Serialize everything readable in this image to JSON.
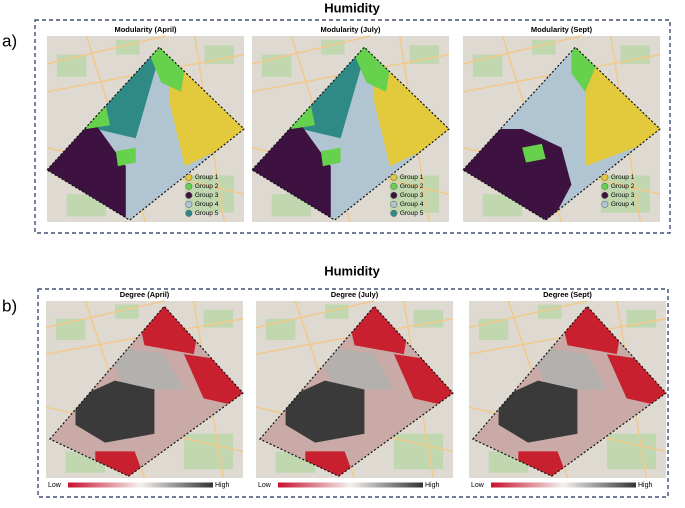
{
  "figure": {
    "panels": [
      {
        "label": "a)",
        "title": "Humidity",
        "maps": [
          {
            "title": "Modularity (April)",
            "legend": [
              {
                "label": "Group 1",
                "color": "#e3c93c"
              },
              {
                "label": "Group 2",
                "color": "#66d14c"
              },
              {
                "label": "Group 3",
                "color": "#3e1240"
              },
              {
                "label": "Group 4",
                "color": "#b0c4d2"
              },
              {
                "label": "Group 5",
                "color": "#2f8a85"
              }
            ]
          },
          {
            "title": "Modularity (July)",
            "legend": [
              {
                "label": "Group 1",
                "color": "#e3c93c"
              },
              {
                "label": "Group 2",
                "color": "#66d14c"
              },
              {
                "label": "Group 3",
                "color": "#3e1240"
              },
              {
                "label": "Group 4",
                "color": "#b0c4d2"
              },
              {
                "label": "Group 5",
                "color": "#2f8a85"
              }
            ]
          },
          {
            "title": "Modularity (Sept)",
            "legend": [
              {
                "label": "Group 1",
                "color": "#e3c93c"
              },
              {
                "label": "Group 2",
                "color": "#66d14c"
              },
              {
                "label": "Group 3",
                "color": "#3e1240"
              },
              {
                "label": "Group 4",
                "color": "#b0c4d2"
              }
            ]
          }
        ]
      },
      {
        "label": "b)",
        "title": "Humidity",
        "maps": [
          {
            "title": "Degree  (April)",
            "low": "Low",
            "high": "High"
          },
          {
            "title": "Degree  (July)",
            "low": "Low",
            "high": "High"
          },
          {
            "title": "Degree  (Sept)",
            "low": "Low",
            "high": "High"
          }
        ]
      }
    ]
  }
}
